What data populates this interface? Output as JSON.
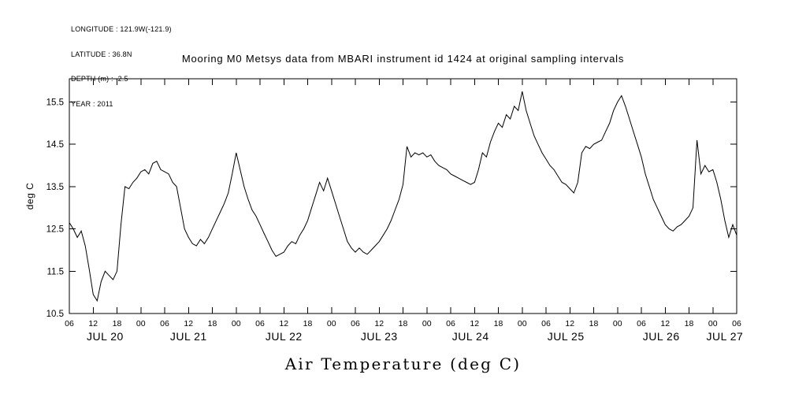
{
  "page": {
    "background": "#ffffff",
    "foreground": "#000000"
  },
  "header": {
    "metadata_lines": [
      "LONGITUDE : 121.9W(-121.9)",
      "LATITUDE : 36.8N",
      "DEPTH (m) : -2.5",
      "YEAR : 2011"
    ],
    "title": "Mooring M0 Metsys data from MBARI instrument id 1424 at original sampling intervals"
  },
  "chart_data": {
    "type": "line",
    "title": "Mooring M0 Metsys data from MBARI instrument id 1424 at original sampling intervals",
    "xlabel": "Air Temperature (deg C)",
    "ylabel": "deg C",
    "ylim": [
      10.5,
      16.05
    ],
    "y_ticks": [
      10.5,
      11.5,
      12.5,
      13.5,
      14.5,
      15.5
    ],
    "x_hours_span": 168,
    "x_tick_interval_hours": 6,
    "x_start_hour": 6,
    "grid": false,
    "legend": "none",
    "line_color": "#000000",
    "x_tick_labels": [
      "06",
      "12",
      "18",
      "00",
      "06",
      "12",
      "18",
      "00",
      "06",
      "12",
      "18",
      "00",
      "06",
      "12",
      "18",
      "00",
      "06",
      "12",
      "18",
      "00",
      "06",
      "12",
      "18",
      "00",
      "06",
      "12",
      "18",
      "00",
      "06"
    ],
    "day_labels": [
      {
        "label": "JUL 20",
        "center_hour": 9
      },
      {
        "label": "JUL 21",
        "center_hour": 30
      },
      {
        "label": "JUL 22",
        "center_hour": 54
      },
      {
        "label": "JUL 23",
        "center_hour": 78
      },
      {
        "label": "JUL 24",
        "center_hour": 101
      },
      {
        "label": "JUL 25",
        "center_hour": 125
      },
      {
        "label": "JUL 26",
        "center_hour": 149
      },
      {
        "label": "JUL 27",
        "center_hour": 165
      }
    ],
    "series": [
      {
        "name": "air_temperature_deg_c",
        "start_hour_offset": 0,
        "hour_step": 1,
        "values": [
          12.65,
          12.5,
          12.3,
          12.45,
          12.1,
          11.55,
          10.95,
          10.8,
          11.25,
          11.5,
          11.4,
          11.3,
          11.5,
          12.6,
          13.5,
          13.45,
          13.6,
          13.7,
          13.85,
          13.9,
          13.8,
          14.05,
          14.1,
          13.9,
          13.85,
          13.8,
          13.6,
          13.5,
          13.0,
          12.5,
          12.3,
          12.15,
          12.1,
          12.25,
          12.15,
          12.3,
          12.5,
          12.7,
          12.9,
          13.1,
          13.35,
          13.8,
          14.3,
          13.9,
          13.5,
          13.2,
          12.95,
          12.8,
          12.6,
          12.4,
          12.2,
          12.0,
          11.85,
          11.9,
          11.95,
          12.1,
          12.2,
          12.15,
          12.35,
          12.5,
          12.7,
          13.0,
          13.3,
          13.6,
          13.4,
          13.7,
          13.4,
          13.1,
          12.8,
          12.5,
          12.2,
          12.05,
          11.95,
          12.05,
          11.95,
          11.9,
          12.0,
          12.1,
          12.2,
          12.35,
          12.5,
          12.7,
          12.95,
          13.2,
          13.55,
          14.45,
          14.2,
          14.3,
          14.25,
          14.3,
          14.2,
          14.25,
          14.1,
          14.0,
          13.95,
          13.9,
          13.8,
          13.75,
          13.7,
          13.65,
          13.6,
          13.55,
          13.6,
          13.9,
          14.3,
          14.2,
          14.55,
          14.8,
          15.0,
          14.9,
          15.2,
          15.1,
          15.4,
          15.3,
          15.75,
          15.3,
          15.0,
          14.7,
          14.5,
          14.3,
          14.15,
          14.0,
          13.9,
          13.75,
          13.6,
          13.55,
          13.45,
          13.35,
          13.6,
          14.3,
          14.45,
          14.4,
          14.5,
          14.55,
          14.6,
          14.8,
          15.0,
          15.3,
          15.5,
          15.65,
          15.4,
          15.1,
          14.8,
          14.5,
          14.2,
          13.8,
          13.5,
          13.2,
          13.0,
          12.8,
          12.6,
          12.5,
          12.45,
          12.55,
          12.6,
          12.7,
          12.8,
          13.0,
          14.6,
          13.8,
          14.0,
          13.85,
          13.9,
          13.6,
          13.2,
          12.7,
          12.3,
          12.6,
          12.35
        ]
      }
    ]
  }
}
